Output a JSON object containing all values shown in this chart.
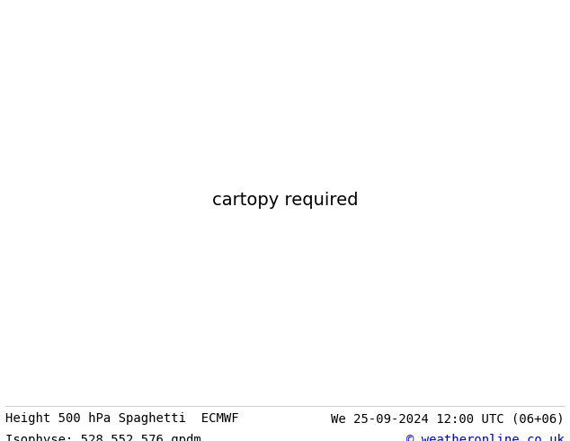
{
  "title_left": "Height 500 hPa Spaghetti  ECMWF",
  "title_right": "We 25-09-2024 12:00 UTC (06+06)",
  "subtitle_left": "Isophyse: 528 552 576 gpdm",
  "subtitle_right": "© weatheronline.co.uk",
  "bg_color": "#ffffff",
  "ocean_color": "#ffffff",
  "land_color": "#c8ebc8",
  "border_color": "#888888",
  "footer_text_color": "#000000",
  "copyright_color": "#0000cc",
  "footer_fontsize": 10,
  "extent": [
    -168,
    -52,
    18,
    78
  ],
  "line_colors": [
    "#ff0000",
    "#0000ff",
    "#00cc00",
    "#ff6600",
    "#cc00cc",
    "#00cccc",
    "#888800",
    "#ff44bb",
    "#004488",
    "#884400",
    "#cc4444",
    "#4444cc",
    "#44cc44",
    "#ffaa00",
    "#aa00ff",
    "#00aaff",
    "#ff00aa",
    "#aaff00",
    "#ff4444",
    "#4444ff",
    "#44ff44",
    "#ffcc00",
    "#cc00ff",
    "#00ffcc"
  ],
  "n_members": 24,
  "line_width": 0.9,
  "label_fontsize": 7,
  "label_color": "#333333"
}
